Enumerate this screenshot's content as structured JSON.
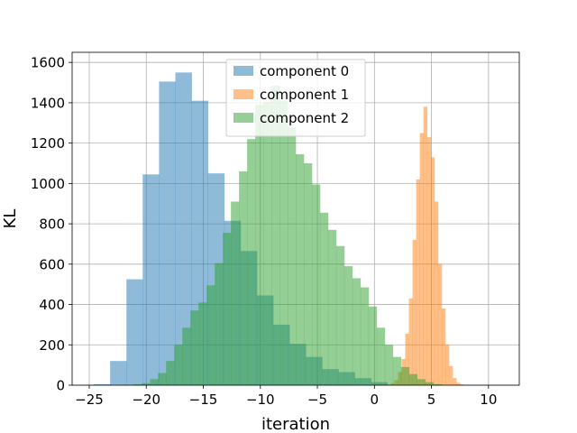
{
  "chart_data": {
    "type": "histogram",
    "xlabel": "iteration",
    "ylabel": "KL",
    "xlim": [
      -26.5,
      12.7
    ],
    "ylim": [
      0,
      1650
    ],
    "xticks": [
      -25,
      -20,
      -15,
      -10,
      -5,
      0,
      5,
      10
    ],
    "xtick_labels": [
      "−25",
      "−20",
      "−15",
      "−10",
      "−5",
      "0",
      "5",
      "10"
    ],
    "yticks": [
      0,
      200,
      400,
      600,
      800,
      1000,
      1200,
      1400,
      1600
    ],
    "ytick_labels": [
      "0",
      "200",
      "400",
      "600",
      "800",
      "1000",
      "1200",
      "1400",
      "1600"
    ],
    "grid": true,
    "legend_position": "upper-center",
    "series": [
      {
        "name": "component 0",
        "color": "#1f77b4",
        "alpha": 0.5,
        "bin_start": -24.6,
        "bin_width": 1.43,
        "values": [
          5,
          120,
          525,
          1045,
          1505,
          1550,
          1410,
          1050,
          815,
          665,
          445,
          300,
          205,
          140,
          80,
          65,
          35,
          15,
          0,
          0,
          0,
          0,
          0,
          0,
          0,
          0,
          0,
          0,
          0,
          0,
          0,
          0,
          0,
          0,
          0,
          0,
          0,
          0
        ]
      },
      {
        "name": "component 1",
        "color": "#ff7f0e",
        "alpha": 0.5,
        "bin_start": 1.1,
        "bin_width": 0.32,
        "values": [
          3,
          10,
          25,
          65,
          130,
          255,
          430,
          720,
          1020,
          1250,
          1380,
          1230,
          1130,
          910,
          600,
          380,
          200,
          95,
          35,
          12,
          4
        ]
      },
      {
        "name": "component 2",
        "color": "#2ca02c",
        "alpha": 0.5,
        "bin_start": -21.1,
        "bin_width": 0.71,
        "values": [
          5,
          10,
          30,
          60,
          120,
          200,
          285,
          370,
          410,
          495,
          605,
          755,
          910,
          1060,
          1220,
          1390,
          1405,
          1485,
          1410,
          1280,
          1145,
          1100,
          995,
          855,
          770,
          690,
          590,
          530,
          485,
          390,
          285,
          200,
          140,
          90,
          55,
          30,
          15,
          5
        ]
      }
    ]
  }
}
